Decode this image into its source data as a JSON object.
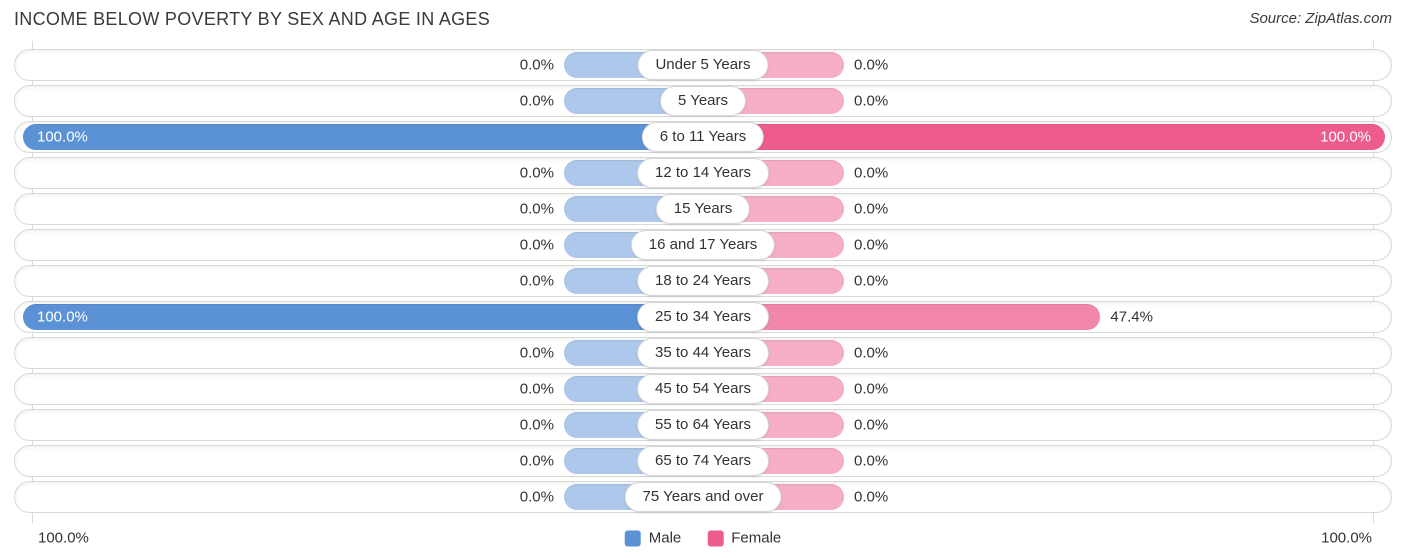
{
  "chart_data": {
    "type": "bar",
    "variant": "diverging-horizontal",
    "title": "INCOME BELOW POVERTY BY SEX AND AGE IN AGES",
    "source": "Source: ZipAtlas.com",
    "categories": [
      "Under 5 Years",
      "5 Years",
      "6 to 11 Years",
      "12 to 14 Years",
      "15 Years",
      "16 and 17 Years",
      "18 to 24 Years",
      "25 to 34 Years",
      "35 to 44 Years",
      "45 to 54 Years",
      "55 to 64 Years",
      "65 to 74 Years",
      "75 Years and over"
    ],
    "series": [
      {
        "name": "Male",
        "color": "#5b92d6",
        "values": [
          0.0,
          0.0,
          100.0,
          0.0,
          0.0,
          0.0,
          0.0,
          100.0,
          0.0,
          0.0,
          0.0,
          0.0,
          0.0
        ],
        "labels": [
          "0.0%",
          "0.0%",
          "100.0%",
          "0.0%",
          "0.0%",
          "0.0%",
          "0.0%",
          "100.0%",
          "0.0%",
          "0.0%",
          "0.0%",
          "0.0%",
          "0.0%"
        ]
      },
      {
        "name": "Female",
        "color": "#ed5c8d",
        "values": [
          0.0,
          0.0,
          100.0,
          0.0,
          0.0,
          0.0,
          0.0,
          47.4,
          0.0,
          0.0,
          0.0,
          0.0,
          0.0
        ],
        "labels": [
          "0.0%",
          "0.0%",
          "100.0%",
          "0.0%",
          "0.0%",
          "0.0%",
          "0.0%",
          "47.4%",
          "0.0%",
          "0.0%",
          "0.0%",
          "0.0%",
          "0.0%"
        ]
      }
    ],
    "axis": {
      "left_label": "100.0%",
      "right_label": "100.0%",
      "xlim": [
        -100,
        100
      ]
    },
    "legend": {
      "position": "bottom-center"
    },
    "colors": {
      "text": "#333333",
      "grid": "#dcdcdc",
      "row_border": "#d8d8d8"
    }
  }
}
